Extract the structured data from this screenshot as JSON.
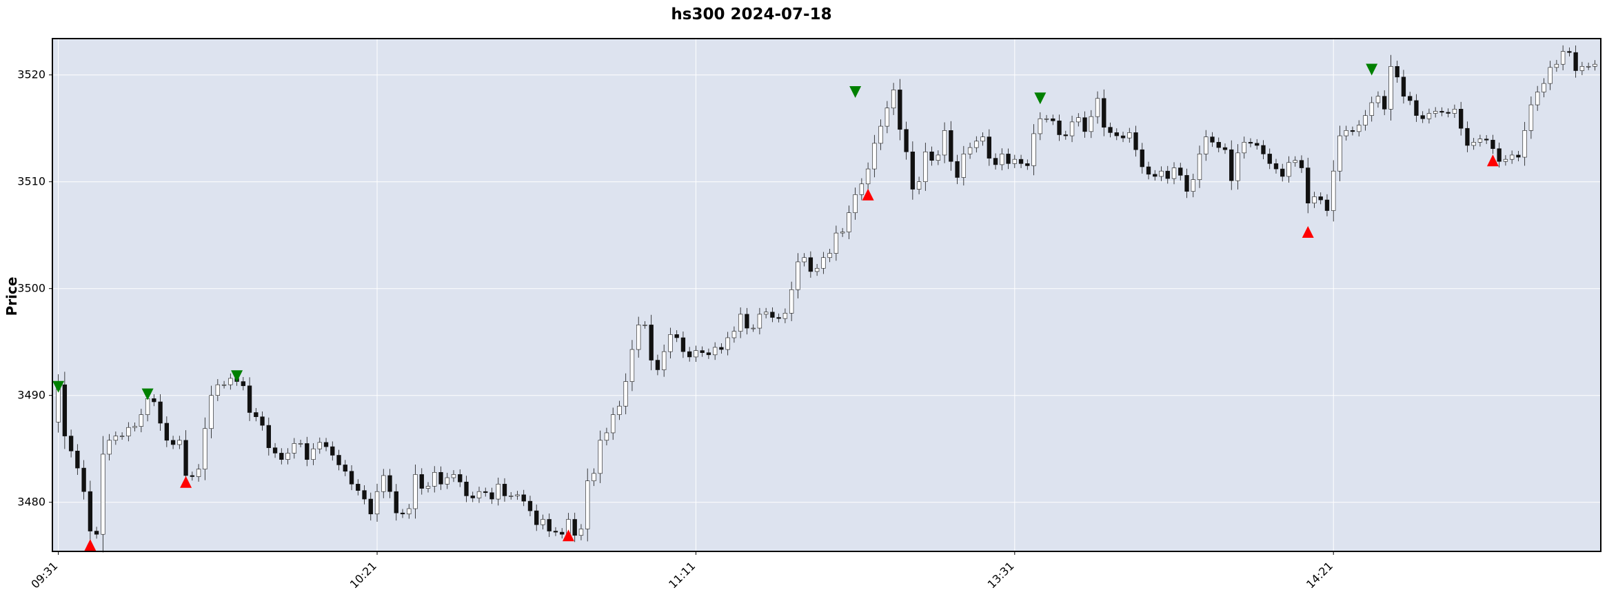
{
  "chart_data": {
    "type": "candlestick",
    "title": "hs300 2024-07-18",
    "ylabel": "Price",
    "xlabel": "",
    "ylim": [
      3475.4,
      3523.4
    ],
    "yticks": [
      3480,
      3490,
      3500,
      3510,
      3520
    ],
    "xtick_labels": [
      "09:31",
      "10:21",
      "11:11",
      "13:31",
      "14:21"
    ],
    "xtick_indices": [
      0,
      50,
      100,
      150,
      200
    ],
    "grid": true,
    "colors": {
      "plot_bg": "#dde3ef",
      "grid": "#ffffff",
      "up_fill": "#ffffff",
      "down_fill": "#111111",
      "edge": "#111111",
      "buy_marker": "#ff0000",
      "sell_marker": "#008000"
    },
    "close": [
      3491.0,
      3486.2,
      3484.8,
      3483.2,
      3481.0,
      3477.3,
      3477.0,
      3484.5,
      3485.8,
      3486.2,
      3486.2,
      3487.0,
      3487.1,
      3488.2,
      3489.7,
      3489.4,
      3487.4,
      3485.8,
      3485.4,
      3485.8,
      3482.5,
      3482.4,
      3483.1,
      3486.9,
      3490.0,
      3491.0,
      3491.0,
      3491.6,
      3491.3,
      3490.9,
      3488.4,
      3488.0,
      3487.2,
      3485.1,
      3484.6,
      3484.0,
      3484.6,
      3485.5,
      3485.5,
      3484.0,
      3485.0,
      3485.6,
      3485.2,
      3484.4,
      3483.5,
      3482.9,
      3481.7,
      3481.1,
      3480.3,
      3478.9,
      3481.0,
      3482.5,
      3481.0,
      3479.0,
      3478.9,
      3479.4,
      3482.6,
      3481.3,
      3481.5,
      3482.8,
      3481.7,
      3482.3,
      3482.6,
      3481.9,
      3480.6,
      3480.4,
      3481.0,
      3480.9,
      3480.3,
      3481.7,
      3480.6,
      3480.6,
      3480.7,
      3480.1,
      3479.2,
      3477.9,
      3478.4,
      3477.3,
      3477.2,
      3477.0,
      3478.4,
      3476.9,
      3477.5,
      3482.0,
      3482.7,
      3485.8,
      3486.5,
      3488.2,
      3489.0,
      3491.3,
      3494.3,
      3496.6,
      3496.6,
      3493.3,
      3492.4,
      3494.1,
      3495.7,
      3495.4,
      3494.1,
      3493.6,
      3494.2,
      3494.0,
      3493.8,
      3494.5,
      3494.3,
      3495.4,
      3496.0,
      3497.6,
      3496.3,
      3496.3,
      3497.6,
      3497.8,
      3497.3,
      3497.2,
      3497.7,
      3499.9,
      3502.5,
      3502.9,
      3501.6,
      3501.9,
      3502.9,
      3503.3,
      3505.2,
      3505.3,
      3507.1,
      3508.8,
      3509.8,
      3511.2,
      3513.6,
      3515.2,
      3516.9,
      3518.6,
      3514.9,
      3512.8,
      3509.3,
      3510.0,
      3512.8,
      3512.0,
      3512.5,
      3514.8,
      3511.9,
      3510.4,
      3512.6,
      3513.2,
      3513.8,
      3514.2,
      3512.2,
      3511.6,
      3512.6,
      3511.7,
      3512.1,
      3511.7,
      3511.5,
      3514.5,
      3515.9,
      3515.9,
      3515.7,
      3514.4,
      3514.3,
      3515.6,
      3516.0,
      3514.7,
      3516.1,
      3517.8,
      3515.1,
      3514.6,
      3514.3,
      3514.1,
      3514.6,
      3513.0,
      3511.4,
      3510.7,
      3510.5,
      3511.0,
      3510.3,
      3511.3,
      3510.6,
      3509.1,
      3510.2,
      3512.6,
      3514.2,
      3513.7,
      3513.2,
      3513.0,
      3510.1,
      3512.7,
      3513.7,
      3513.6,
      3513.4,
      3512.6,
      3511.7,
      3511.2,
      3510.5,
      3511.8,
      3512.0,
      3511.3,
      3508.0,
      3508.6,
      3508.3,
      3507.3,
      3511.0,
      3514.3,
      3514.8,
      3514.7,
      3515.3,
      3516.2,
      3517.4,
      3518.0,
      3516.8,
      3520.8,
      3519.8,
      3518.0,
      3517.6,
      3516.2,
      3515.9,
      3516.4,
      3516.6,
      3516.5,
      3516.4,
      3516.8,
      3515.0,
      3513.4,
      3513.7,
      3514.0,
      3513.9,
      3513.1,
      3511.9,
      3512.1,
      3512.5,
      3512.3,
      3514.8,
      3517.2,
      3518.4,
      3519.2,
      3520.7,
      3521.0,
      3522.2,
      3522.1,
      3520.4,
      3520.8,
      3520.8,
      3521.0
    ],
    "signals": {
      "buy": [
        {
          "index": 5,
          "price": 3476.0
        },
        {
          "index": 20,
          "price": 3481.9
        },
        {
          "index": 80,
          "price": 3476.9
        },
        {
          "index": 127,
          "price": 3508.8
        },
        {
          "index": 196,
          "price": 3505.3
        },
        {
          "index": 225,
          "price": 3512.0
        }
      ],
      "sell": [
        {
          "index": 0,
          "price": 3490.8
        },
        {
          "index": 14,
          "price": 3490.1
        },
        {
          "index": 28,
          "price": 3491.8
        },
        {
          "index": 125,
          "price": 3518.4
        },
        {
          "index": 154,
          "price": 3517.8
        },
        {
          "index": 206,
          "price": 3520.5
        }
      ]
    }
  }
}
